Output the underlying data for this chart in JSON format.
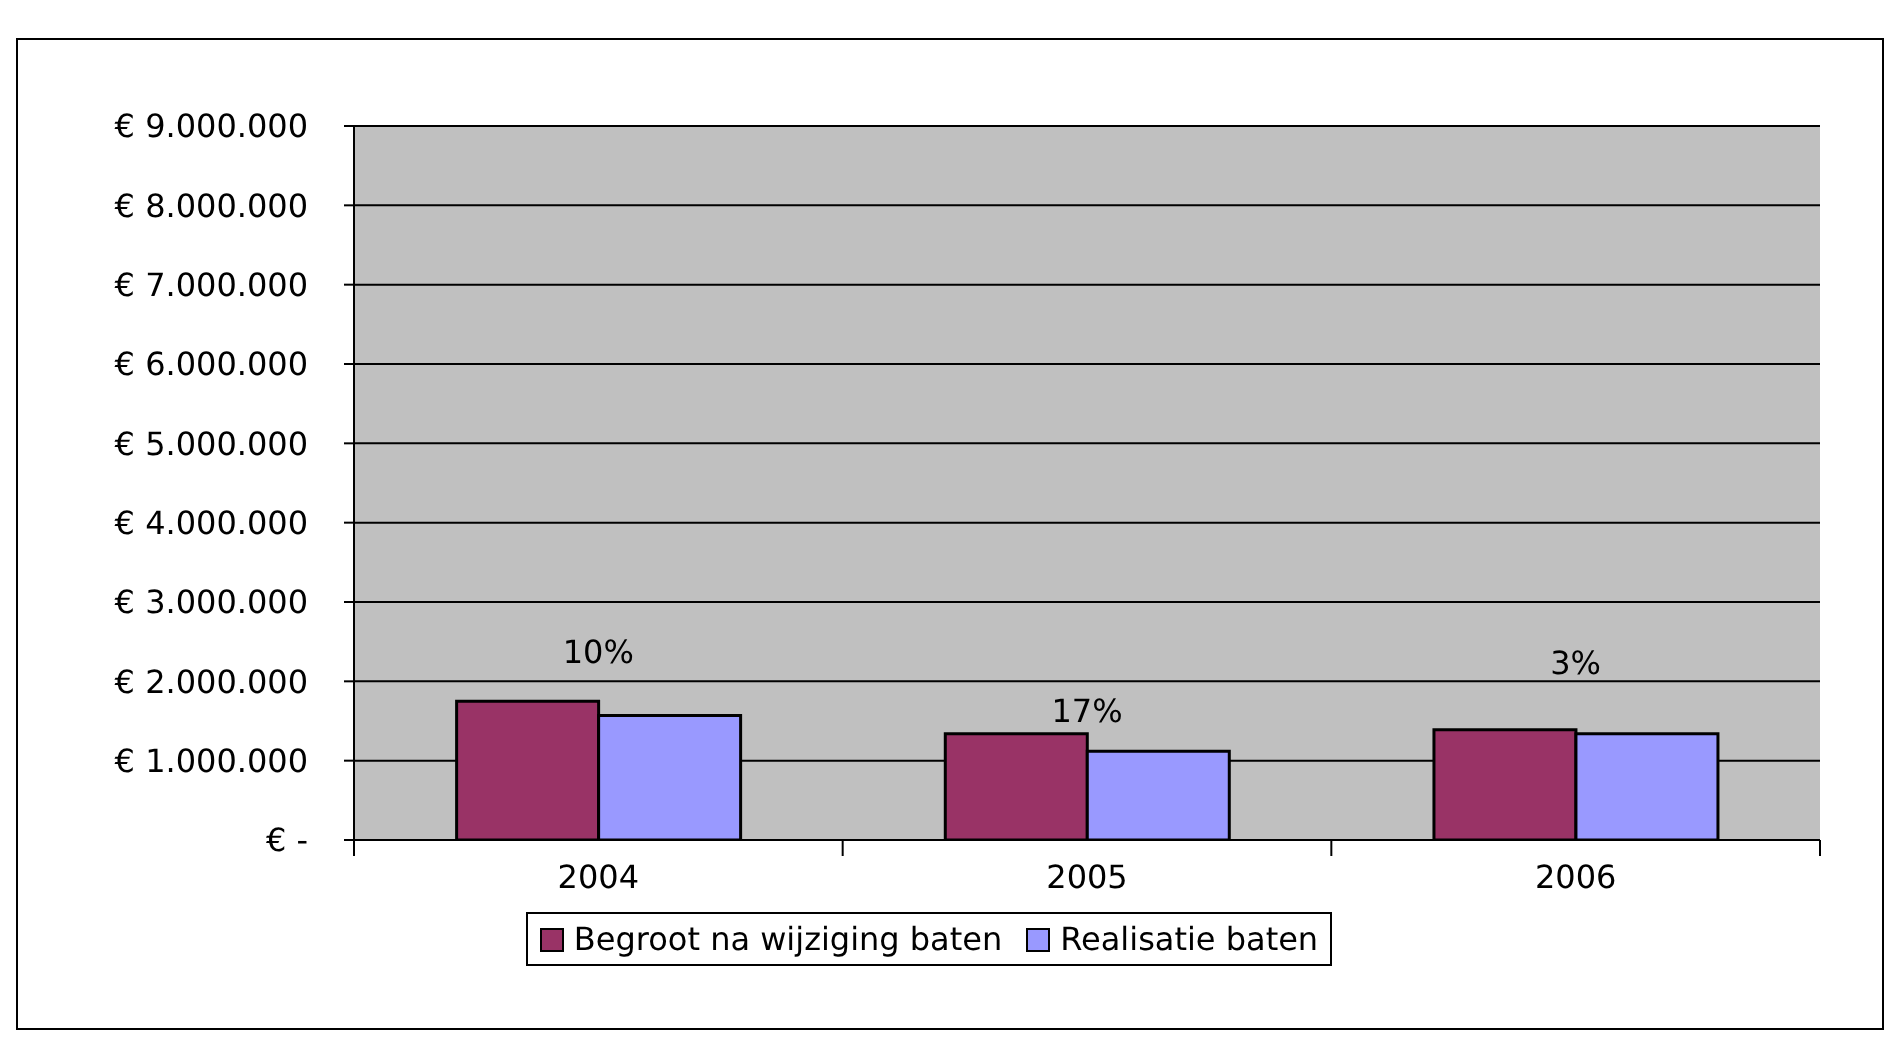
{
  "chart_data": {
    "type": "bar",
    "categories": [
      "2004",
      "2005",
      "2006"
    ],
    "series": [
      {
        "name": "Begroot na wijziging baten",
        "color": "#993366",
        "values": [
          1750000,
          1340000,
          1390000
        ]
      },
      {
        "name": "Realisatie baten",
        "color": "#9999ff",
        "values": [
          1570000,
          1120000,
          1340000
        ]
      }
    ],
    "ylim": [
      0,
      9000000
    ],
    "yticks": [
      {
        "value": 0,
        "label": "€ -"
      },
      {
        "value": 1000000,
        "label": "€ 1.000.000"
      },
      {
        "value": 2000000,
        "label": "€ 2.000.000"
      },
      {
        "value": 3000000,
        "label": "€ 3.000.000"
      },
      {
        "value": 4000000,
        "label": "€ 4.000.000"
      },
      {
        "value": 5000000,
        "label": "€ 5.000.000"
      },
      {
        "value": 6000000,
        "label": "€ 6.000.000"
      },
      {
        "value": 7000000,
        "label": "€ 7.000.000"
      },
      {
        "value": 8000000,
        "label": "€ 8.000.000"
      },
      {
        "value": 9000000,
        "label": "€ 9.000.000"
      }
    ],
    "annotations": [
      "10%",
      "17%",
      "3%"
    ],
    "grid": "y",
    "legend": "bottom"
  }
}
